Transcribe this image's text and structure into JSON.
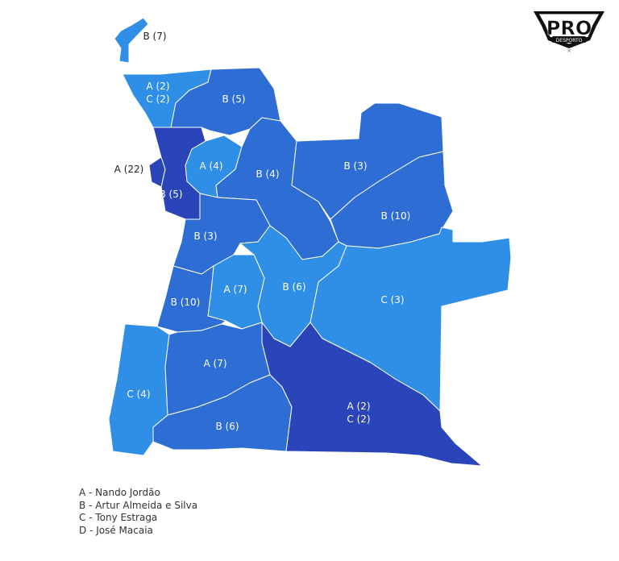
{
  "colors": {
    "light": "#2f8ee6",
    "medium": "#2e6ed4",
    "dark": "#2a44b9"
  },
  "logo": {
    "text": "PRO",
    "subtext": "DESPORTO"
  },
  "regions": [
    {
      "id": "cabinda",
      "label": [
        "B (7)"
      ],
      "shade": "light"
    },
    {
      "id": "zaire",
      "label": [
        "A (2)",
        "C (2)"
      ],
      "shade": "light"
    },
    {
      "id": "uige",
      "label": [
        "B (5)"
      ],
      "shade": "medium"
    },
    {
      "id": "luanda",
      "label": [
        "A (22)"
      ],
      "shade": "dark"
    },
    {
      "id": "bengo",
      "label": [
        "B (5)"
      ],
      "shade": "dark"
    },
    {
      "id": "cuanza-norte",
      "label": [
        "A (4)"
      ],
      "shade": "light"
    },
    {
      "id": "malanje",
      "label": [
        "B (4)"
      ],
      "shade": "medium"
    },
    {
      "id": "lunda-norte",
      "label": [
        "B (3)"
      ],
      "shade": "medium"
    },
    {
      "id": "lunda-sul",
      "label": [
        "B (10)"
      ],
      "shade": "medium"
    },
    {
      "id": "cuanza-sul",
      "label": [
        "B (3)"
      ],
      "shade": "medium"
    },
    {
      "id": "bie",
      "label": [
        "B (6)"
      ],
      "shade": "light"
    },
    {
      "id": "moxico",
      "label": [
        "C (3)"
      ],
      "shade": "light"
    },
    {
      "id": "huambo",
      "label": [
        "A (7)"
      ],
      "shade": "light"
    },
    {
      "id": "benguela",
      "label": [
        "B (10)"
      ],
      "shade": "medium"
    },
    {
      "id": "namibe",
      "label": [
        "C (4)"
      ],
      "shade": "light"
    },
    {
      "id": "huila",
      "label": [
        "A (7)"
      ],
      "shade": "medium"
    },
    {
      "id": "cunene",
      "label": [
        "B (6)"
      ],
      "shade": "medium"
    },
    {
      "id": "cuando-cubango",
      "label": [
        "A (2)",
        "C (2)"
      ],
      "shade": "dark"
    }
  ],
  "legend": [
    "A - Nando Jordão",
    "B - Artur Almeida e Silva",
    "C - Tony Estraga",
    "D - José Macaia"
  ]
}
